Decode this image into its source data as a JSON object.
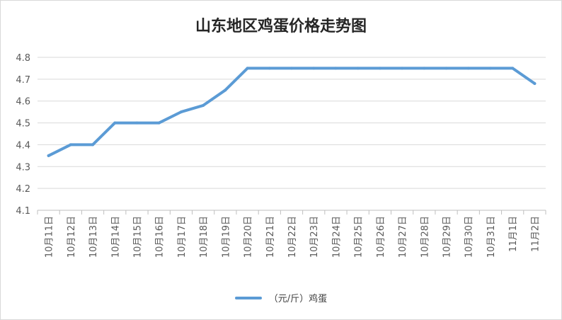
{
  "chart_data": {
    "type": "line",
    "title": "山东地区鸡蛋价格走势图",
    "categories": [
      "10月11日",
      "10月12日",
      "10月13日",
      "10月14日",
      "10月15日",
      "10月16日",
      "10月17日",
      "10月18日",
      "10月19日",
      "10月20日",
      "10月21日",
      "10月22日",
      "10月23日",
      "10月24日",
      "10月25日",
      "10月26日",
      "10月27日",
      "10月28日",
      "10月29日",
      "10月30日",
      "10月31日",
      "11月1日",
      "11月2日"
    ],
    "series": [
      {
        "name": "（元/斤）鸡蛋",
        "values": [
          4.35,
          4.4,
          4.4,
          4.5,
          4.5,
          4.5,
          4.55,
          4.58,
          4.65,
          4.75,
          4.75,
          4.75,
          4.75,
          4.75,
          4.75,
          4.75,
          4.75,
          4.75,
          4.75,
          4.75,
          4.75,
          4.75,
          4.68
        ]
      }
    ],
    "ylim": [
      4.1,
      4.8
    ],
    "yticks": [
      "4.1",
      "4.2",
      "4.3",
      "4.4",
      "4.5",
      "4.6",
      "4.7",
      "4.8"
    ],
    "grid": true,
    "legend": "bottom",
    "colors": {
      "line": "#5b9bd5",
      "grid": "#d9d9d9",
      "axis": "#bfbfbf",
      "text": "#595959"
    }
  }
}
